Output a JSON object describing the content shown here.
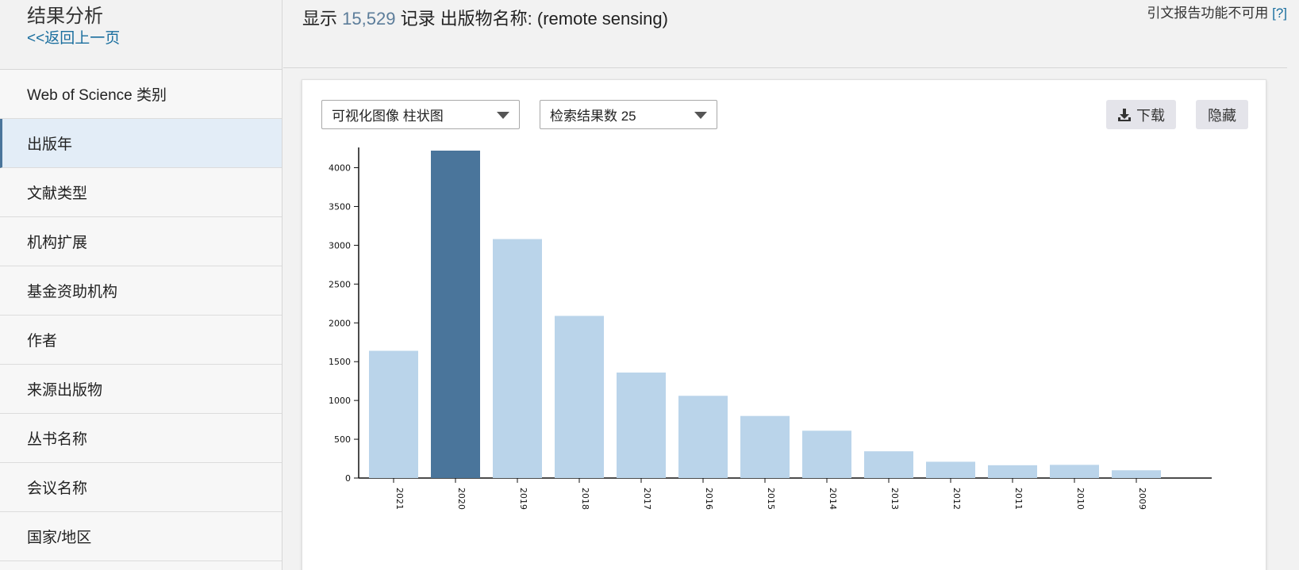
{
  "sidebar": {
    "title": "结果分析",
    "back_link": "<<返回上一页",
    "items": [
      {
        "label": "Web of Science 类别",
        "active": false
      },
      {
        "label": "出版年",
        "active": true
      },
      {
        "label": "文献类型",
        "active": false
      },
      {
        "label": "机构扩展",
        "active": false
      },
      {
        "label": "基金资助机构",
        "active": false
      },
      {
        "label": "作者",
        "active": false
      },
      {
        "label": "来源出版物",
        "active": false
      },
      {
        "label": "丛书名称",
        "active": false
      },
      {
        "label": "会议名称",
        "active": false
      },
      {
        "label": "国家/地区",
        "active": false
      }
    ]
  },
  "header": {
    "prefix": "显示",
    "count": "15,529",
    "suffix": "记录 出版物名称: (remote sensing)",
    "citation_note": "引文报告功能不可用",
    "help": "[?]"
  },
  "toolbar": {
    "viz_select": "可视化图像 柱状图",
    "count_select": "检索结果数 25",
    "download_label": "下载",
    "hide_label": "隐藏"
  },
  "colors": {
    "bar": "#bad4ea",
    "bar_highlight": "#4a759b",
    "axis": "#111111"
  },
  "icons": {
    "download": "download-icon",
    "caret": "chevron-down-icon"
  },
  "chart_data": {
    "type": "bar",
    "categories": [
      "2021",
      "2020",
      "2019",
      "2018",
      "2017",
      "2016",
      "2015",
      "2014",
      "2013",
      "2012",
      "2011",
      "2010",
      "2009"
    ],
    "values": [
      1640,
      4220,
      3080,
      2090,
      1360,
      1060,
      800,
      610,
      345,
      210,
      165,
      170,
      100
    ],
    "highlighted_category": "2020",
    "yticks": [
      0,
      500,
      1000,
      1500,
      2000,
      2500,
      3000,
      3500,
      4000
    ],
    "ylim": [
      0,
      4220
    ],
    "title": "",
    "xlabel": "",
    "ylabel": "",
    "grid": false
  }
}
